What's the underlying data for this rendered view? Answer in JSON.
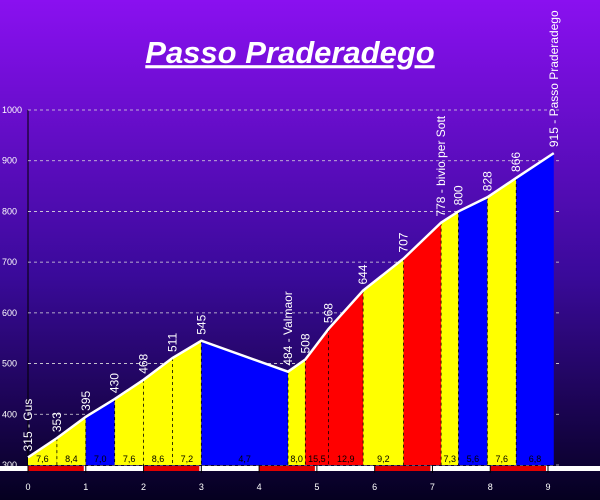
{
  "chart_data": {
    "type": "profile",
    "title": "Passo Praderadego",
    "x": [
      0,
      0.5,
      1,
      1.5,
      2,
      2.5,
      3,
      4.5,
      4.8,
      5.2,
      5.8,
      6.5,
      7.15,
      7.45,
      7.95,
      8.45,
      9.1
    ],
    "values": [
      315,
      353,
      395,
      430,
      468,
      511,
      545,
      484,
      508,
      568,
      644,
      707,
      778,
      800,
      828,
      866,
      915
    ],
    "value_labels": [
      "315 - Gus",
      "353",
      "395",
      "430",
      "468",
      "511",
      "545",
      "484 - Valmaor",
      "508",
      "568",
      "644",
      "707",
      "778 - bivio per Sott",
      "800",
      "828",
      "866",
      "915 - Passo Praderadego"
    ],
    "segments": {
      "grades": [
        7.6,
        8.4,
        7.0,
        7.6,
        8.6,
        7.2,
        4.7,
        8.0,
        15.5,
        12.9,
        9.2,
        null,
        7.3,
        5.6,
        7.6,
        6.8
      ],
      "grade_labels": [
        "7,6",
        "8,4",
        "7,0",
        "7,6",
        "8,6",
        "7,2",
        "4,7",
        "8,0",
        "15,5",
        "12,9",
        "9,2",
        null,
        "7,3",
        "5,6",
        "7,6",
        "6,8"
      ],
      "colors": [
        "#ffff00",
        "#ffff00",
        "#0000ff",
        "#ffff00",
        "#ffff00",
        "#ffff00",
        "#0000ff",
        "#ffff00",
        "#ff0000",
        "#ff0000",
        "#ffff00",
        "#ff0000",
        "#ffff00",
        "#0000ff",
        "#ffff00",
        "#0000ff"
      ]
    },
    "xlim": [
      0,
      9
    ],
    "xticks": [
      0,
      1,
      2,
      3,
      4,
      5,
      6,
      7,
      8,
      9
    ],
    "ylim": [
      300,
      1000
    ],
    "yticks": [
      300,
      400,
      500,
      600,
      700,
      800,
      900,
      1000
    ],
    "grid": true
  }
}
